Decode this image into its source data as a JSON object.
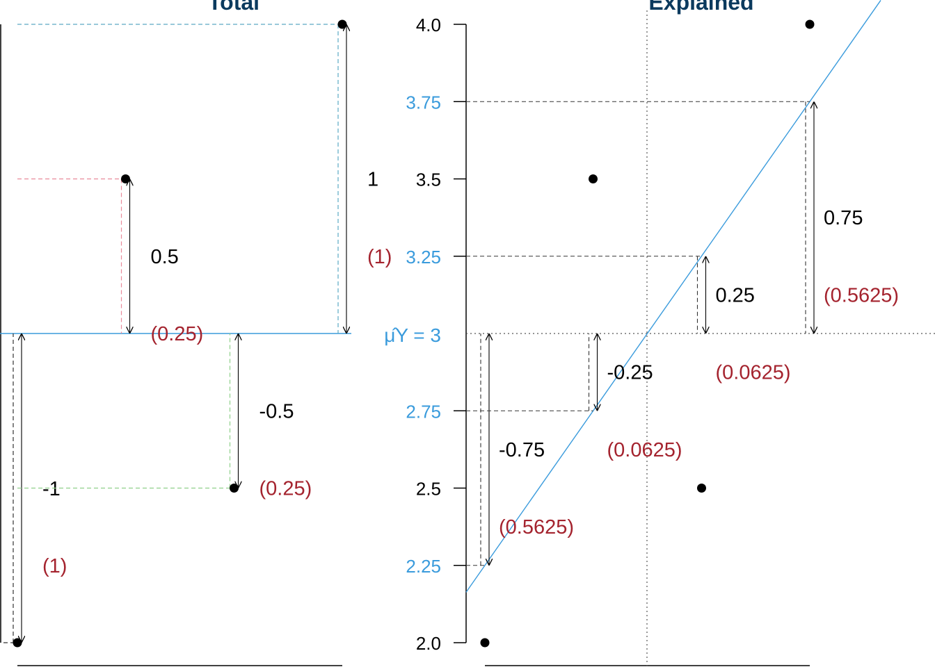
{
  "colors": {
    "title": "#0b3a5e",
    "fit_line": "#3a9bdc",
    "squares": "#a4232e",
    "point": "#000000",
    "guide_pink": "#e98a9a",
    "guide_green": "#8fd08a",
    "guide_teal": "#5aa9c4",
    "guide_dark": "#333333"
  },
  "chart_data": [
    {
      "type": "scatter",
      "title": "Total",
      "ylim": [
        2.0,
        4.0
      ],
      "mean_y": 3,
      "points": [
        {
          "y": 2.0,
          "deviation_label": "-1",
          "square_label": "(1)",
          "guide": "dark",
          "rel_x": 0.0
        },
        {
          "y": 3.5,
          "deviation_label": "0.5",
          "square_label": "(0.25)",
          "guide": "pink",
          "rel_x": 0.333
        },
        {
          "y": 2.5,
          "deviation_label": "-0.5",
          "square_label": "(0.25)",
          "guide": "green",
          "rel_x": 0.667
        },
        {
          "y": 4.0,
          "deviation_label": "1",
          "square_label": "(1)",
          "guide": "teal",
          "rel_x": 1.0
        }
      ]
    },
    {
      "type": "scatter",
      "title": "Explained",
      "ylim": [
        2.0,
        4.0
      ],
      "y_ticks": [
        "2.0",
        "2.5",
        "3.5",
        "4.0"
      ],
      "fitted_ticks": [
        "2.25",
        "2.75",
        "3.25",
        "3.75"
      ],
      "mean_label": "μ̂Y = 3",
      "mean_y": 3,
      "points": [
        {
          "y": 2.0,
          "fitted": 2.25,
          "deviation_label": "-0.75",
          "square_label": "(0.5625)",
          "rel_x": 0.0
        },
        {
          "y": 3.5,
          "fitted": 2.75,
          "deviation_label": "-0.25",
          "square_label": "(0.0625)",
          "rel_x": 0.333
        },
        {
          "y": 2.5,
          "fitted": 3.25,
          "deviation_label": "0.25",
          "square_label": "(0.0625)",
          "rel_x": 0.667
        },
        {
          "y": 4.0,
          "fitted": 3.75,
          "deviation_label": "0.75",
          "square_label": "(0.5625)",
          "rel_x": 1.0
        }
      ]
    }
  ]
}
